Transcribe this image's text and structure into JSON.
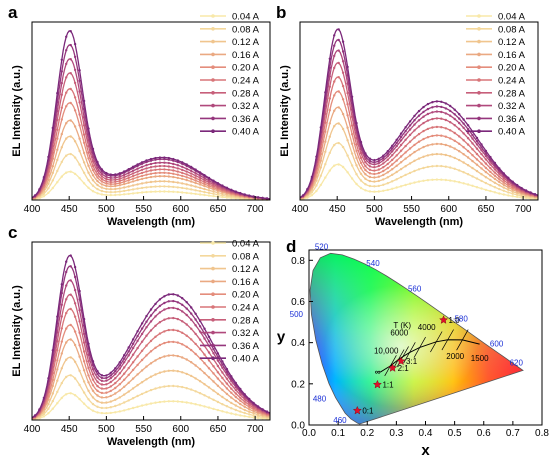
{
  "colors": {
    "series": [
      "#f8e8a8",
      "#f4d89c",
      "#f0c58e",
      "#eaa982",
      "#e48d7c",
      "#d87578",
      "#c75f7a",
      "#b0497c",
      "#95367d",
      "#7b287a"
    ]
  },
  "chart_data": [
    {
      "panel": "a",
      "type": "line",
      "xlabel": "Wavelength (nm)",
      "ylabel": "EL Intensity (a.u.)",
      "xlim": [
        400,
        720
      ],
      "xticks": [
        "400",
        "450",
        "500",
        "550",
        "600",
        "650",
        "700"
      ],
      "legend": "top-right",
      "blue_peak": 450,
      "yellow_peak": 575,
      "series": [
        {
          "name": "0.04 A",
          "blue": 0.16,
          "yellow": 0.05
        },
        {
          "name": "0.08 A",
          "blue": 0.26,
          "yellow": 0.08
        },
        {
          "name": "0.12 A",
          "blue": 0.36,
          "yellow": 0.11
        },
        {
          "name": "0.16 A",
          "blue": 0.45,
          "yellow": 0.14
        },
        {
          "name": "0.20 A",
          "blue": 0.55,
          "yellow": 0.16
        },
        {
          "name": "0.24 A",
          "blue": 0.63,
          "yellow": 0.18
        },
        {
          "name": "0.28 A",
          "blue": 0.72,
          "yellow": 0.2
        },
        {
          "name": "0.32 A",
          "blue": 0.8,
          "yellow": 0.22
        },
        {
          "name": "0.36 A",
          "blue": 0.88,
          "yellow": 0.24
        },
        {
          "name": "0.40 A",
          "blue": 0.96,
          "yellow": 0.25
        }
      ]
    },
    {
      "panel": "b",
      "type": "line",
      "xlabel": "Wavelength (nm)",
      "ylabel": "EL Intensity (a.u.)",
      "xlim": [
        400,
        720
      ],
      "xticks": [
        "400",
        "450",
        "500",
        "550",
        "600",
        "650",
        "700"
      ],
      "legend": "top-right",
      "blue_peak": 450,
      "yellow_peak": 585,
      "series": [
        {
          "name": "0.04 A",
          "blue": 0.2,
          "yellow": 0.12
        },
        {
          "name": "0.08 A",
          "blue": 0.32,
          "yellow": 0.2
        },
        {
          "name": "0.12 A",
          "blue": 0.43,
          "yellow": 0.27
        },
        {
          "name": "0.16 A",
          "blue": 0.52,
          "yellow": 0.33
        },
        {
          "name": "0.20 A",
          "blue": 0.61,
          "yellow": 0.38
        },
        {
          "name": "0.24 A",
          "blue": 0.69,
          "yellow": 0.43
        },
        {
          "name": "0.28 A",
          "blue": 0.77,
          "yellow": 0.48
        },
        {
          "name": "0.32 A",
          "blue": 0.84,
          "yellow": 0.52
        },
        {
          "name": "0.36 A",
          "blue": 0.9,
          "yellow": 0.55
        },
        {
          "name": "0.40 A",
          "blue": 0.96,
          "yellow": 0.58
        }
      ]
    },
    {
      "panel": "c",
      "type": "line",
      "xlabel": "Wavelength (nm)",
      "ylabel": "EL Intensity (a.u.)",
      "xlim": [
        400,
        720
      ],
      "xticks": [
        "400",
        "450",
        "500",
        "550",
        "600",
        "650",
        "700"
      ],
      "legend": "top-right",
      "blue_peak": 450,
      "yellow_peak": 588,
      "series": [
        {
          "name": "0.04 A",
          "blue": 0.15,
          "yellow": 0.11
        },
        {
          "name": "0.08 A",
          "blue": 0.25,
          "yellow": 0.2
        },
        {
          "name": "0.12 A",
          "blue": 0.35,
          "yellow": 0.29
        },
        {
          "name": "0.16 A",
          "blue": 0.45,
          "yellow": 0.38
        },
        {
          "name": "0.20 A",
          "blue": 0.53,
          "yellow": 0.46
        },
        {
          "name": "0.24 A",
          "blue": 0.62,
          "yellow": 0.53
        },
        {
          "name": "0.28 A",
          "blue": 0.7,
          "yellow": 0.6
        },
        {
          "name": "0.32 A",
          "blue": 0.78,
          "yellow": 0.66
        },
        {
          "name": "0.36 A",
          "blue": 0.86,
          "yellow": 0.7
        },
        {
          "name": "0.40 A",
          "blue": 0.92,
          "yellow": 0.74
        }
      ]
    },
    {
      "panel": "d",
      "type": "scatter",
      "xlabel": "x",
      "ylabel": "y",
      "xlim": [
        0.0,
        0.8
      ],
      "ylim": [
        0.0,
        0.85
      ],
      "xticks": [
        "0.0",
        "0.1",
        "0.2",
        "0.3",
        "0.4",
        "0.5",
        "0.6",
        "0.7",
        "0.8"
      ],
      "yticks": [
        "0.0",
        "0.2",
        "0.4",
        "0.6",
        "0.8"
      ],
      "wavelength_labels": [
        {
          "text": "460",
          "x": 0.144,
          "y": 0.03
        },
        {
          "text": "480",
          "x": 0.091,
          "y": 0.133
        },
        {
          "text": "500",
          "x": 0.008,
          "y": 0.538
        },
        {
          "text": "520",
          "x": 0.074,
          "y": 0.834
        },
        {
          "text": "540",
          "x": 0.23,
          "y": 0.754
        },
        {
          "text": "560",
          "x": 0.373,
          "y": 0.624
        },
        {
          "text": "580",
          "x": 0.512,
          "y": 0.487
        },
        {
          "text": "600",
          "x": 0.627,
          "y": 0.372
        },
        {
          "text": "620",
          "x": 0.691,
          "y": 0.308
        }
      ],
      "planckian_labels": [
        "T (K)",
        "6000",
        "4000",
        "10,000",
        "2000",
        "1500",
        "∞"
      ],
      "points": [
        {
          "label": "0:1",
          "x": 0.166,
          "y": 0.07
        },
        {
          "label": "1:1",
          "x": 0.235,
          "y": 0.196
        },
        {
          "label": "2:1",
          "x": 0.287,
          "y": 0.277
        },
        {
          "label": "3:1",
          "x": 0.316,
          "y": 0.31
        },
        {
          "label": "1:0",
          "x": 0.462,
          "y": 0.51
        }
      ]
    }
  ]
}
